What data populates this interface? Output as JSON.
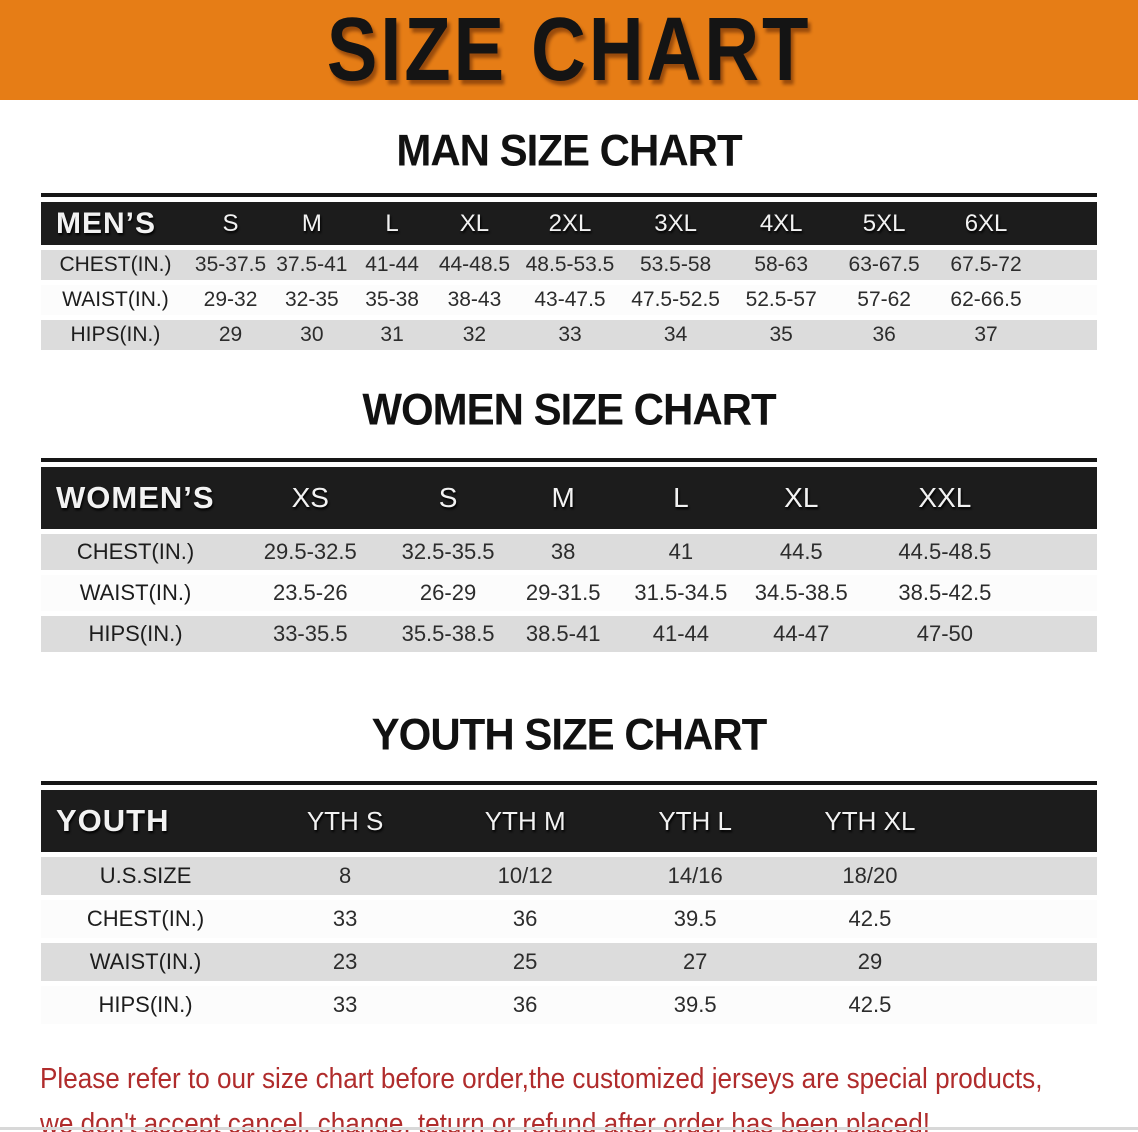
{
  "colors": {
    "banner_bg": "#e67d16",
    "bar_bg": "#1c1c1c",
    "row_gray": "#dcdcdc",
    "row_white": "#fcfcfc",
    "text_red": "#b02c2c",
    "heading_black": "#111111"
  },
  "banner": {
    "title": "SIZE CHART"
  },
  "sections": [
    {
      "heading": "MAN SIZE CHART",
      "table": {
        "header": [
          "MEN’S",
          "S",
          "M",
          "L",
          "XL",
          "2XL",
          "3XL",
          "4XL",
          "5XL",
          "6XL"
        ],
        "col_widths": [
          "14.1%",
          "7.7%",
          "7.7%",
          "7.5%",
          "8.1%",
          "10%",
          "10%",
          "10%",
          "9.5%",
          "9.8%",
          "5.6%"
        ],
        "rows": [
          {
            "label": "CHEST(IN.)",
            "values": [
              "35-37.5",
              "37.5-41",
              "41-44",
              "44-48.5",
              "48.5-53.5",
              "53.5-58",
              "58-63",
              "63-67.5",
              "67.5-72"
            ]
          },
          {
            "label": "WAIST(IN.)",
            "values": [
              "29-32",
              "32-35",
              "35-38",
              "38-43",
              "43-47.5",
              "47.5-52.5",
              "52.5-57",
              "57-62",
              "62-66.5"
            ]
          },
          {
            "label": "HIPS(IN.)",
            "values": [
              "29",
              "30",
              "31",
              "32",
              "33",
              "34",
              "35",
              "36",
              "37"
            ]
          }
        ]
      }
    },
    {
      "heading": "WOMEN SIZE CHART",
      "table": {
        "header": [
          "WOMEN’S",
          "XS",
          "S",
          "M",
          "L",
          "XL",
          "XXL"
        ],
        "col_widths": [
          "17.9%",
          "15.2%",
          "10.9%",
          "10.9%",
          "11.4%",
          "11.4%",
          "15.8%",
          "6.5%"
        ],
        "rows": [
          {
            "label": "CHEST(IN.)",
            "values": [
              "29.5-32.5",
              "32.5-35.5",
              "38",
              "41",
              "44.5",
              "44.5-48.5"
            ]
          },
          {
            "label": "WAIST(IN.)",
            "values": [
              "23.5-26",
              "26-29",
              "29-31.5",
              "31.5-34.5",
              "34.5-38.5",
              "38.5-42.5"
            ]
          },
          {
            "label": "HIPS(IN.)",
            "values": [
              "33-35.5",
              "35.5-38.5",
              "38.5-41",
              "41-44",
              "44-47",
              "47-50"
            ]
          }
        ]
      }
    },
    {
      "heading": "YOUTH SIZE CHART",
      "table": {
        "header": [
          "YOUTH",
          "YTH S",
          "YTH M",
          "YTH L",
          "YTH XL"
        ],
        "col_widths": [
          "19.8%",
          "18%",
          "16.1%",
          "16.1%",
          "17%",
          "13%"
        ],
        "rows": [
          {
            "label": "U.S.SIZE",
            "values": [
              "8",
              "10/12",
              "14/16",
              "18/20"
            ]
          },
          {
            "label": "CHEST(IN.)",
            "values": [
              "33",
              "36",
              "39.5",
              "42.5"
            ]
          },
          {
            "label": "WAIST(IN.)",
            "values": [
              "23",
              "25",
              "27",
              "29"
            ]
          },
          {
            "label": "HIPS(IN.)",
            "values": [
              "33",
              "36",
              "39.5",
              "42.5"
            ]
          }
        ]
      }
    }
  ],
  "footer": {
    "lines": [
      "Please refer to our size chart before order,the customized jerseys are special products,",
      "we don't accept cancel, change, teturn or refund after order has been placed!"
    ]
  }
}
